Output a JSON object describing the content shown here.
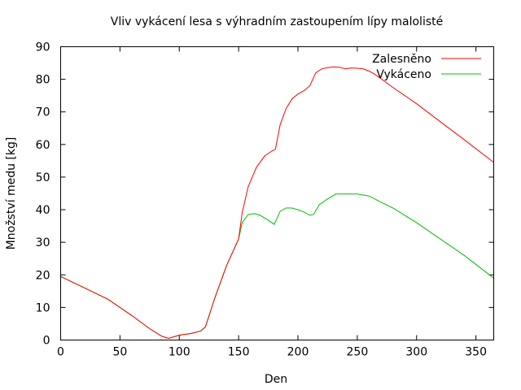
{
  "chart_data": {
    "type": "line",
    "title": "Vliv vykácení lesa s výhradním zastoupením lípy malolisté",
    "xlabel": "Den",
    "ylabel": "Množství medu [kg]",
    "xlim": [
      0,
      365
    ],
    "ylim": [
      0,
      90
    ],
    "xticks": [
      0,
      50,
      100,
      150,
      200,
      250,
      300,
      350
    ],
    "yticks": [
      0,
      10,
      20,
      30,
      40,
      50,
      60,
      70,
      80,
      90
    ],
    "grid": false,
    "legend_position": "top-right",
    "series": [
      {
        "name": "Zalesněno",
        "color": "#ff0000",
        "x": [
          0,
          20,
          40,
          60,
          75,
          85,
          91,
          100,
          110,
          118,
          122,
          130,
          140,
          150,
          153,
          158,
          165,
          172,
          178,
          181,
          185,
          190,
          195,
          200,
          205,
          210,
          215,
          220,
          225,
          230,
          235,
          240,
          245,
          250,
          255,
          260,
          265,
          270,
          280,
          300,
          320,
          340,
          365
        ],
        "y": [
          19.5,
          16,
          12.5,
          7.5,
          3.5,
          1.2,
          0.5,
          1.5,
          2,
          2.8,
          4,
          13,
          23,
          31,
          39,
          47,
          53,
          56.5,
          58,
          58.5,
          66,
          71,
          74,
          75.5,
          76.5,
          78,
          82,
          83.2,
          83.6,
          83.8,
          83.7,
          83.2,
          83.5,
          83.4,
          83.2,
          82.5,
          81.5,
          80.2,
          77.5,
          72.5,
          67,
          61.5,
          54.5
        ]
      },
      {
        "name": "Vykáceno",
        "color": "#00c000",
        "x": [
          0,
          20,
          40,
          60,
          75,
          85,
          91,
          100,
          110,
          118,
          122,
          130,
          140,
          150,
          153,
          158,
          163,
          168,
          174,
          180,
          185,
          190,
          195,
          200,
          205,
          210,
          213,
          218,
          225,
          232,
          240,
          250,
          260,
          270,
          280,
          300,
          320,
          340,
          365
        ],
        "y": [
          19.5,
          16,
          12.5,
          7.5,
          3.5,
          1.2,
          0.5,
          1.5,
          2,
          2.8,
          4,
          13,
          23,
          31,
          36,
          38.5,
          38.8,
          38.3,
          37,
          35.5,
          39.5,
          40.5,
          40.5,
          40,
          39.3,
          38.3,
          38.5,
          41.5,
          43.3,
          44.8,
          44.8,
          44.8,
          44.2,
          42.3,
          40.5,
          36,
          31,
          26,
          19
        ]
      }
    ]
  }
}
